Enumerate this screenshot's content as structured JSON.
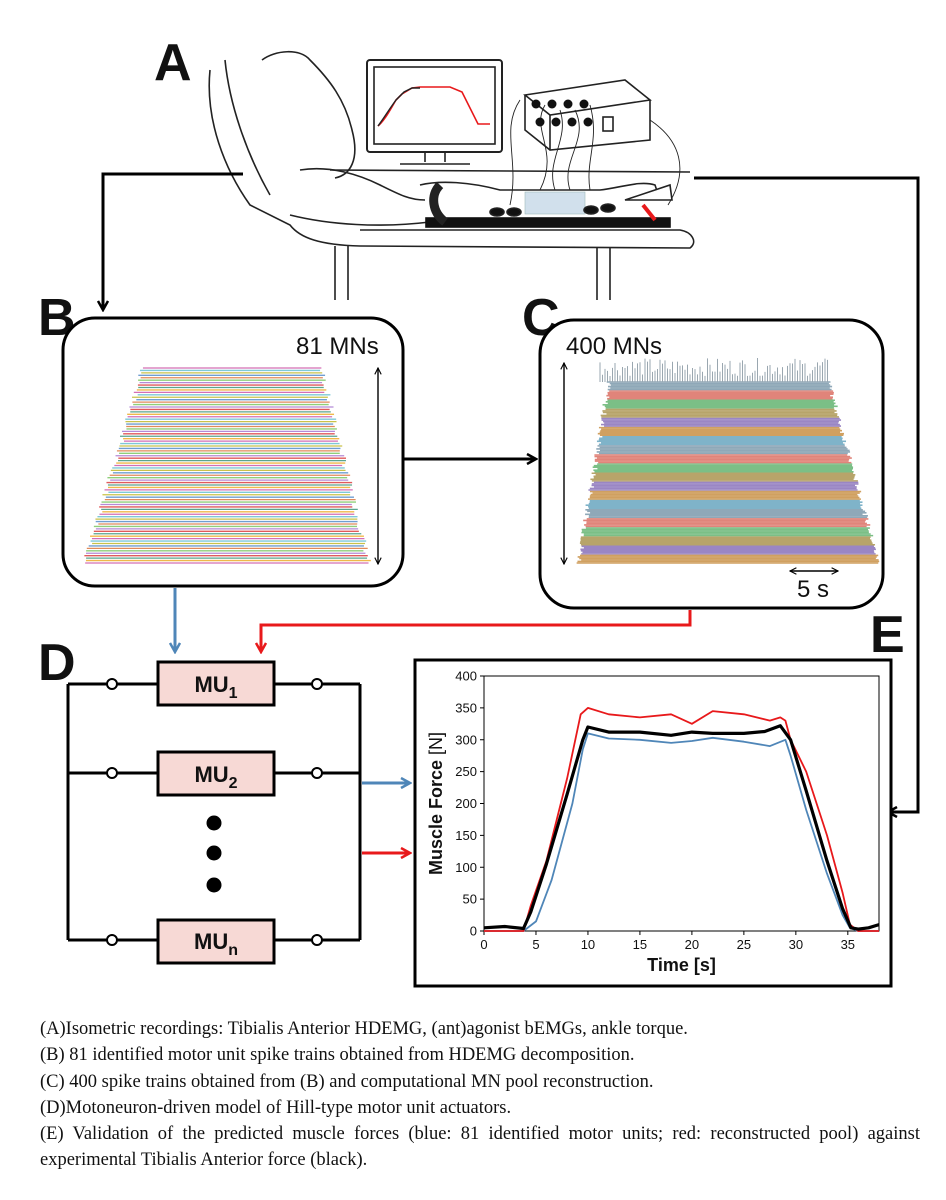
{
  "panels": {
    "a": "A",
    "b": "B",
    "c": "C",
    "d": "D",
    "e": "E"
  },
  "panel_b": {
    "label": "81 MNs",
    "rows": 81
  },
  "panel_c": {
    "label": "400 MNs",
    "scale_label": "5 s"
  },
  "panel_d": {
    "units": [
      {
        "base": "MU",
        "sub": "1"
      },
      {
        "base": "MU",
        "sub": "2"
      },
      {
        "base": "MU",
        "sub": "n"
      }
    ]
  },
  "colors": {
    "blue": "#4f86b8",
    "red": "#e8191b",
    "black": "#000000",
    "mu_fill": "#f7d9d5"
  },
  "chart_data": {
    "type": "line",
    "title": "",
    "xlabel": "Time [s]",
    "ylabel": "Muscle Force [N]",
    "xlim": [
      0,
      38
    ],
    "ylim": [
      0,
      400
    ],
    "xticks": [
      0,
      5,
      10,
      15,
      20,
      25,
      30,
      35
    ],
    "yticks": [
      0,
      50,
      100,
      150,
      200,
      250,
      300,
      350,
      400
    ],
    "grid": false,
    "series": [
      {
        "name": "black",
        "color": "#000000",
        "x": [
          0,
          2,
          3.8,
          4.5,
          6,
          8,
          9.5,
          10,
          12,
          15,
          18,
          20,
          22,
          25,
          27,
          28.5,
          29.5,
          31,
          33,
          34.5,
          35.3,
          36,
          37,
          38
        ],
        "y": [
          5,
          7,
          4,
          30,
          105,
          215,
          300,
          320,
          312,
          312,
          307,
          312,
          310,
          310,
          313,
          322,
          300,
          220,
          110,
          35,
          5,
          3,
          5,
          10
        ]
      },
      {
        "name": "red",
        "color": "#e8191b",
        "x": [
          0,
          3.8,
          4.5,
          6,
          8,
          9.3,
          10,
          12,
          15,
          18,
          20,
          22,
          25,
          27.5,
          28.5,
          29,
          29.5,
          31,
          33,
          34.5,
          35.2,
          36,
          38
        ],
        "y": [
          0,
          0,
          40,
          110,
          240,
          340,
          350,
          340,
          335,
          340,
          325,
          345,
          340,
          330,
          335,
          330,
          300,
          250,
          150,
          60,
          10,
          0,
          0
        ]
      },
      {
        "name": "blue",
        "color": "#4f86b8",
        "x": [
          0,
          3.8,
          5,
          6.5,
          8.5,
          9.5,
          10,
          12,
          15,
          18,
          20,
          22,
          25,
          27.5,
          29,
          29.5,
          31,
          33,
          34.5,
          35.2,
          36,
          38
        ],
        "y": [
          0,
          0,
          15,
          80,
          200,
          285,
          310,
          302,
          300,
          295,
          298,
          303,
          297,
          290,
          300,
          275,
          190,
          90,
          25,
          5,
          0,
          0
        ]
      }
    ]
  },
  "caption": {
    "a": "(A)Isometric recordings: Tibialis Anterior HDEMG, (ant)agonist bEMGs, ankle torque.",
    "b": "(B) 81 identified motor unit spike trains obtained from HDEMG decomposition.",
    "c": "(C) 400 spike trains obtained from (B) and computational MN pool reconstruction.",
    "d": "(D)Motoneuron-driven model of Hill-type motor unit actuators.",
    "e": "(E) Validation of the predicted muscle forces (blue: 81 identified motor units; red: reconstructed pool) against experimental Tibialis Anterior force (black)."
  }
}
